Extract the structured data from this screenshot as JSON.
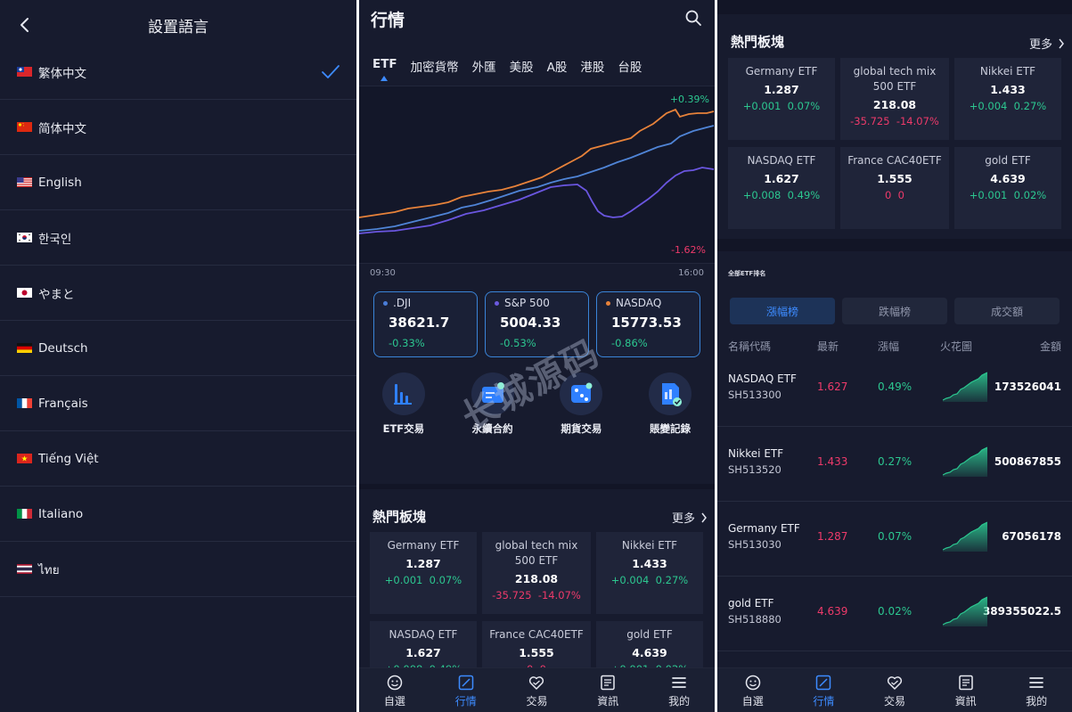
{
  "language_screen": {
    "title": "設置語言",
    "languages": [
      {
        "label": "繁体中文",
        "flag": "tw",
        "selected": true
      },
      {
        "label": "简体中文",
        "flag": "cn",
        "selected": false
      },
      {
        "label": "English",
        "flag": "us",
        "selected": false
      },
      {
        "label": "한국인",
        "flag": "kr",
        "selected": false
      },
      {
        "label": "やまと",
        "flag": "jp",
        "selected": false
      },
      {
        "label": "Deutsch",
        "flag": "de",
        "selected": false
      },
      {
        "label": "Français",
        "flag": "fr",
        "selected": false
      },
      {
        "label": "Tiếng Việt",
        "flag": "vn",
        "selected": false
      },
      {
        "label": "Italiano",
        "flag": "it",
        "selected": false
      },
      {
        "label": "ไทย",
        "flag": "th",
        "selected": false
      }
    ]
  },
  "market_screen": {
    "title": "行情",
    "tabs": [
      "ETF",
      "加密貨幣",
      "外匯",
      "美股",
      "A股",
      "港股",
      "台股"
    ],
    "active_tab": "ETF",
    "chart": {
      "top_label": "+0.39%",
      "bottom_label": "-1.62%",
      "time_start": "09:30",
      "time_end": "16:00"
    },
    "indices": [
      {
        "name": ".DJI",
        "value": "38621.7",
        "change": "-0.33%",
        "dot_color": "#4a7dd8"
      },
      {
        "name": "S&P 500",
        "value": "5004.33",
        "change": "-0.53%",
        "dot_color": "#6b5ae0"
      },
      {
        "name": "NASDAQ",
        "value": "15773.53",
        "change": "-0.86%",
        "dot_color": "#e7823a"
      }
    ],
    "quick_actions": [
      {
        "label": "ETF交易",
        "icon": "bar-chart-icon"
      },
      {
        "label": "永續合約",
        "icon": "contract-icon"
      },
      {
        "label": "期貨交易",
        "icon": "dice-icon"
      },
      {
        "label": "賬變記錄",
        "icon": "record-icon"
      }
    ],
    "hot_title": "熱門板塊",
    "more_label": "更多",
    "hot_sectors": [
      {
        "name": "Germany ETF",
        "price": "1.287",
        "change": "+0.001",
        "pct": "0.07%",
        "dir": "up"
      },
      {
        "name": "global tech mix 500 ETF",
        "price": "218.08",
        "change": "-35.725",
        "pct": "-14.07%",
        "dir": "down"
      },
      {
        "name": "Nikkei ETF",
        "price": "1.433",
        "change": "+0.004",
        "pct": "0.27%",
        "dir": "up"
      },
      {
        "name": "NASDAQ ETF",
        "price": "1.627",
        "change": "+0.008",
        "pct": "0.49%",
        "dir": "up"
      },
      {
        "name": "France CAC40ETF",
        "price": "1.555",
        "change": "0",
        "pct": "0",
        "dir": "down"
      },
      {
        "name": "gold ETF",
        "price": "4.639",
        "change": "+0.001",
        "pct": "0.02%",
        "dir": "up"
      }
    ]
  },
  "nav": {
    "items": [
      {
        "label": "自選",
        "icon": "smile-icon"
      },
      {
        "label": "行情",
        "icon": "chart-square-icon"
      },
      {
        "label": "交易",
        "icon": "trade-icon"
      },
      {
        "label": "資訊",
        "icon": "news-icon"
      },
      {
        "label": "我的",
        "icon": "menu-icon"
      }
    ],
    "active": "行情"
  },
  "ranking_screen": {
    "section_title": "全部ETF排名",
    "segments": [
      "漲幅榜",
      "跌幅榜",
      "成交額"
    ],
    "active_segment": "漲幅榜",
    "columns": [
      "名稱代碼",
      "最新",
      "漲幅",
      "火花圖",
      "金額"
    ],
    "rows": [
      {
        "name": "NASDAQ ETF",
        "code": "SH513300",
        "price": "1.627",
        "pct": "0.49%",
        "amount": "173526041"
      },
      {
        "name": "Nikkei ETF",
        "code": "SH513520",
        "price": "1.433",
        "pct": "0.27%",
        "amount": "500867855"
      },
      {
        "name": "Germany ETF",
        "code": "SH513030",
        "price": "1.287",
        "pct": "0.07%",
        "amount": "67056178"
      },
      {
        "name": "gold ETF",
        "code": "SH518880",
        "price": "4.639",
        "pct": "0.02%",
        "amount": "389355022.5"
      }
    ]
  },
  "watermark": "长城源码",
  "colors": {
    "background": "#171b2e",
    "accent": "#3d8bff",
    "up": "#2cc790",
    "down": "#ee3a6a",
    "card_border": "#3a84d8"
  }
}
